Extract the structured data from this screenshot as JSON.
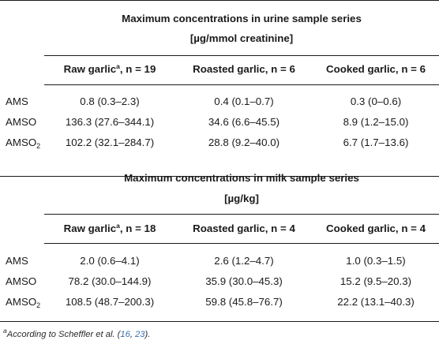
{
  "urine": {
    "title_line1": "Maximum concentrations in urine sample series",
    "title_line2": "[µg/mmol creatinine]",
    "col1": {
      "name": "Raw garlic",
      "note": "a",
      "n": "n = 19"
    },
    "col2": {
      "name": "Roasted garlic, ",
      "n": "n = 6"
    },
    "col3": {
      "name": "Cooked garlic, ",
      "n": "n = 6"
    },
    "rows": [
      {
        "label": "AMS",
        "sub": "",
        "v1": "0.8 (0.3–2.3)",
        "v2": "0.4 (0.1–0.7)",
        "v3": "0.3 (0–0.6)"
      },
      {
        "label": "AMSO",
        "sub": "",
        "v1": "136.3 (27.6–344.1)",
        "v2": "34.6 (6.6–45.5)",
        "v3": "8.9 (1.2–15.0)"
      },
      {
        "label": "AMSO",
        "sub": "2",
        "v1": "102.2 (32.1–284.7)",
        "v2": "28.8 (9.2–40.0)",
        "v3": "6.7 (1.7–13.6)"
      }
    ]
  },
  "milk": {
    "title_line1": "Maximum concentrations in milk sample series",
    "title_line2": "[µg/kg]",
    "col1": {
      "name": "Raw garlic",
      "note": "a",
      "n": "n = 18"
    },
    "col2": {
      "name": "Roasted garlic, ",
      "n": "n = 4"
    },
    "col3": {
      "name": "Cooked garlic, ",
      "n": "n = 4"
    },
    "rows": [
      {
        "label": "AMS",
        "sub": "",
        "v1": "2.0 (0.6–4.1)",
        "v2": "2.6 (1.2–4.7)",
        "v3": "1.0 (0.3–1.5)"
      },
      {
        "label": "AMSO",
        "sub": "",
        "v1": "78.2 (30.0–144.9)",
        "v2": "35.9 (30.0–45.3)",
        "v3": "15.2 (9.5–20.3)"
      },
      {
        "label": "AMSO",
        "sub": "2",
        "v1": "108.5 (48.7–200.3)",
        "v2": "59.8 (45.8–76.7)",
        "v3": "22.2 (13.1–40.3)"
      }
    ]
  },
  "footnote": {
    "mark": "a",
    "text": "According to Scheffler et al. (",
    "ref1": "16",
    "sep": ", ",
    "ref2": "23",
    "end": ")."
  }
}
